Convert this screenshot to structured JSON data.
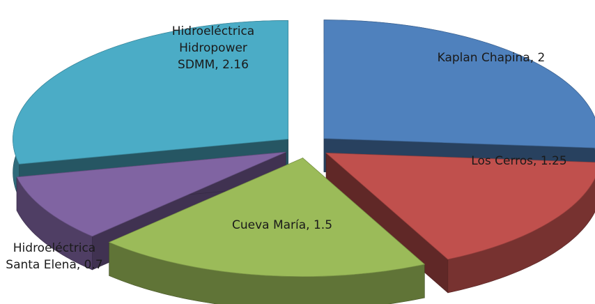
{
  "chart_data": {
    "type": "pie",
    "variant": "exploded-3d",
    "title": "",
    "slices": [
      {
        "label": "Kaplan Chapina",
        "value": 2,
        "color": "#4f81bd",
        "label_lines": [
          "Kaplan Chapina, 2"
        ]
      },
      {
        "label": "Los Cerros",
        "value": 1.25,
        "color": "#c0504d",
        "label_lines": [
          "Los Cerros, 1.25"
        ]
      },
      {
        "label": "Cueva María",
        "value": 1.5,
        "color": "#9bbb59",
        "label_lines": [
          "Cueva María, 1.5"
        ]
      },
      {
        "label": "Hidroeléctrica Santa Elena",
        "value": 0.7,
        "color": "#8064a2",
        "label_lines": [
          "Hidroeléctrica",
          "Santa Elena, 0.7"
        ]
      },
      {
        "label": "Hidroeléctrica Hidropower SDMM",
        "value": 2.16,
        "color": "#4bacc6",
        "label_lines": [
          "Hidroeléctrica",
          "Hidropower",
          "SDMM, 2.16"
        ]
      }
    ]
  }
}
